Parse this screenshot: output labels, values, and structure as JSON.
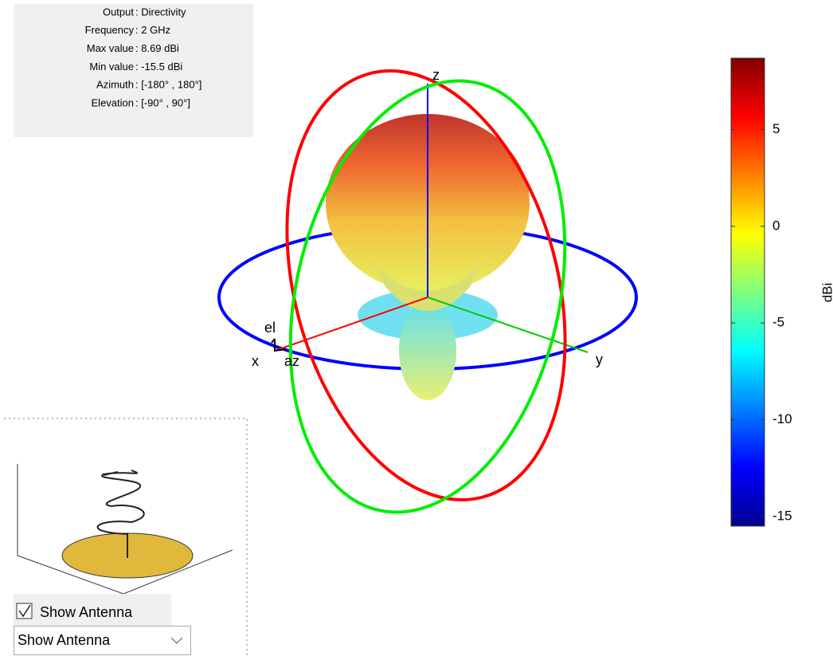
{
  "info_panel": {
    "rows": [
      [
        "Output",
        ": Directivity"
      ],
      [
        "Frequency",
        ": 2 GHz"
      ],
      [
        "Max value",
        ": 8.69 dBi"
      ],
      [
        "Min value",
        ": -15.5 dBi"
      ],
      [
        "Azimuth",
        ": [-180° , 180°]"
      ],
      [
        "Elevation",
        ": [-90° , 90°]"
      ]
    ]
  },
  "axes_labels": {
    "z": "z",
    "x": "x",
    "y": "y",
    "el": "el",
    "az": "az"
  },
  "colorbar": {
    "label": "dBi",
    "lim": [
      -15.5,
      8.69
    ],
    "ticks": [
      5,
      0,
      -5,
      -10,
      -15
    ]
  },
  "controls": {
    "checkbox": {
      "label": "Show Antenna",
      "checked": true
    },
    "dropdown": {
      "value": "Show Antenna"
    }
  }
}
